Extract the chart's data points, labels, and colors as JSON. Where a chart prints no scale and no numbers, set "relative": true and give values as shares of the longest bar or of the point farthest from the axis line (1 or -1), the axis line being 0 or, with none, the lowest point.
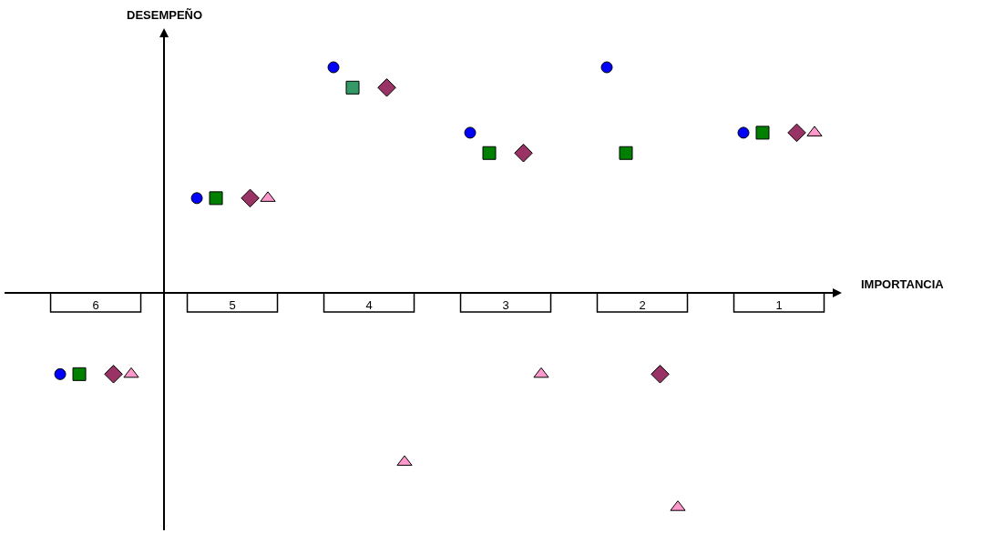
{
  "chart_data": {
    "type": "scatter",
    "relative": true,
    "xlabel": "IMPORTANCIA",
    "ylabel": "DESEMPEÑO",
    "categories": [
      "6",
      "5",
      "4",
      "3",
      "2",
      "1"
    ],
    "legend": false,
    "grid": false,
    "series": [
      {
        "color": "#0000ff",
        "marker": "circle",
        "values": [
          -0.36,
          0.42,
          1,
          0.71,
          1,
          0.71
        ]
      },
      {
        "color": "#008000",
        "colors": [
          "#008000",
          "#008000",
          "#339966",
          "#008000",
          "#008000",
          "#008000"
        ],
        "marker": "square",
        "values": [
          -0.36,
          0.42,
          0.91,
          0.62,
          0.62,
          0.71
        ]
      },
      {
        "color": "#993366",
        "marker": "diamond",
        "values": [
          -0.36,
          0.42,
          0.91,
          0.62,
          -0.36,
          0.71
        ]
      },
      {
        "color": "#ff99cc",
        "marker": "triangle",
        "values": [
          -0.36,
          0.42,
          -0.75,
          -0.36,
          -0.95,
          0.71
        ]
      }
    ]
  }
}
